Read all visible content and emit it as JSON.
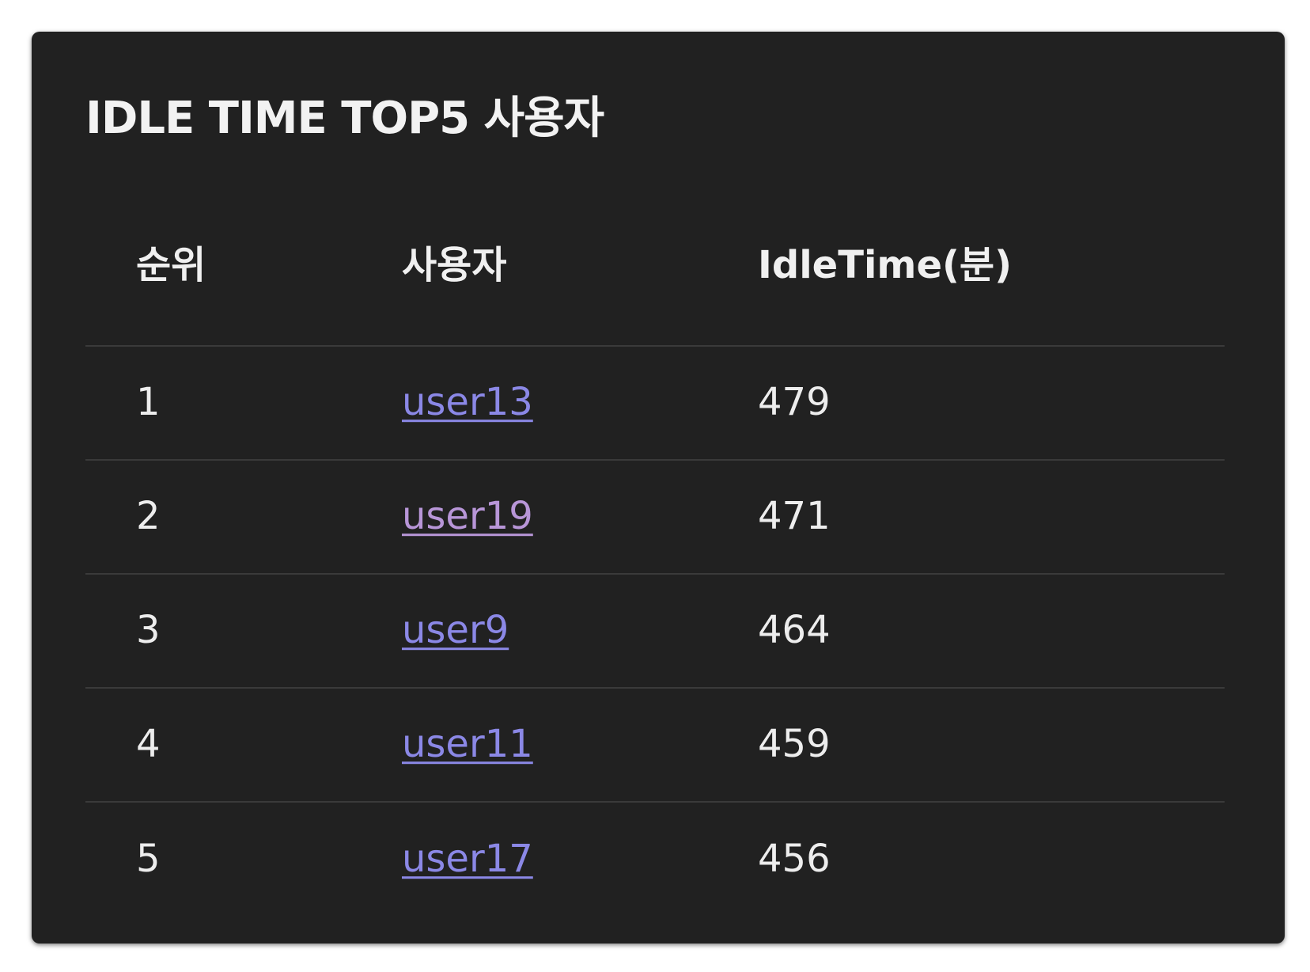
{
  "card": {
    "title": "IDLE TIME TOP5 사용자"
  },
  "table": {
    "headers": {
      "rank": "순위",
      "user": "사용자",
      "idle": "IdleTime(분)"
    },
    "rows": [
      {
        "rank": "1",
        "user": "user13",
        "idle": "479"
      },
      {
        "rank": "2",
        "user": "user19",
        "idle": "471"
      },
      {
        "rank": "3",
        "user": "user9",
        "idle": "464"
      },
      {
        "rank": "4",
        "user": "user11",
        "idle": "459"
      },
      {
        "rank": "5",
        "user": "user17",
        "idle": "456"
      }
    ]
  },
  "colors": {
    "card_background": "#212121",
    "link": "#8b88e6",
    "link_visited": "#b896d8",
    "divider": "#3a3a3a",
    "text": "#ededed"
  }
}
